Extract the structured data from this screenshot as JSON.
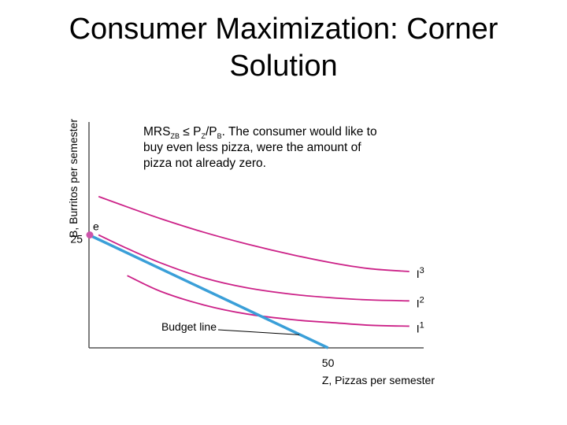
{
  "title": "Consumer Maximization: Corner Solution",
  "annotation": {
    "mrs": "MRS",
    "mrs_sub": "ZB",
    "relation": " ≤ P",
    "pz_sub": "Z",
    "slash": "/P",
    "pb_sub": "B",
    "text": ". The consumer would like to buy even less pizza, were the amount of pizza not already zero."
  },
  "colors": {
    "axis": "#555555",
    "indifference": "#cc2288",
    "budget": "#3a9fd8",
    "point": "#cc55aa",
    "leader": "#000000"
  },
  "chart_data": {
    "type": "line",
    "title": "Consumer Maximization: Corner Solution",
    "xlabel": "Z, Pizzas per semester",
    "ylabel": "B, Burritos per semester",
    "xlim": [
      0,
      70
    ],
    "ylim": [
      0,
      50
    ],
    "x_ticks": [
      {
        "value": 50,
        "label": "50"
      }
    ],
    "y_ticks": [
      {
        "value": 25,
        "label": "25"
      }
    ],
    "grid": false,
    "series": [
      {
        "name": "I3",
        "label": "I",
        "sup": "3",
        "kind": "indifference",
        "x": [
          2.0,
          8.0,
          15,
          24,
          33,
          43,
          52,
          59,
          67
        ],
        "y": [
          33.5,
          31.2,
          28.6,
          25.6,
          23.0,
          20.5,
          18.6,
          17.5,
          16.9
        ]
      },
      {
        "name": "I2",
        "label": "I",
        "sup": "2",
        "kind": "indifference",
        "x": [
          2.0,
          8.0,
          15,
          24,
          33,
          43,
          52,
          59,
          67
        ],
        "y": [
          25.0,
          22.0,
          18.8,
          15.5,
          13.3,
          11.8,
          11.0,
          10.6,
          10.4
        ]
      },
      {
        "name": "I1",
        "label": "I",
        "sup": "1",
        "kind": "indifference",
        "x": [
          8.0,
          15,
          24,
          33,
          43,
          52,
          59,
          67
        ],
        "y": [
          16.0,
          12.5,
          9.5,
          7.5,
          6.2,
          5.5,
          5.0,
          4.8
        ]
      },
      {
        "name": "Budget line",
        "kind": "budget",
        "x": [
          0,
          50
        ],
        "y": [
          25,
          0
        ]
      }
    ],
    "points": [
      {
        "label": "e",
        "x": 0,
        "y": 25
      }
    ],
    "annotations": [
      {
        "text": "Budget line",
        "x": 44,
        "y": 2.9
      }
    ]
  }
}
